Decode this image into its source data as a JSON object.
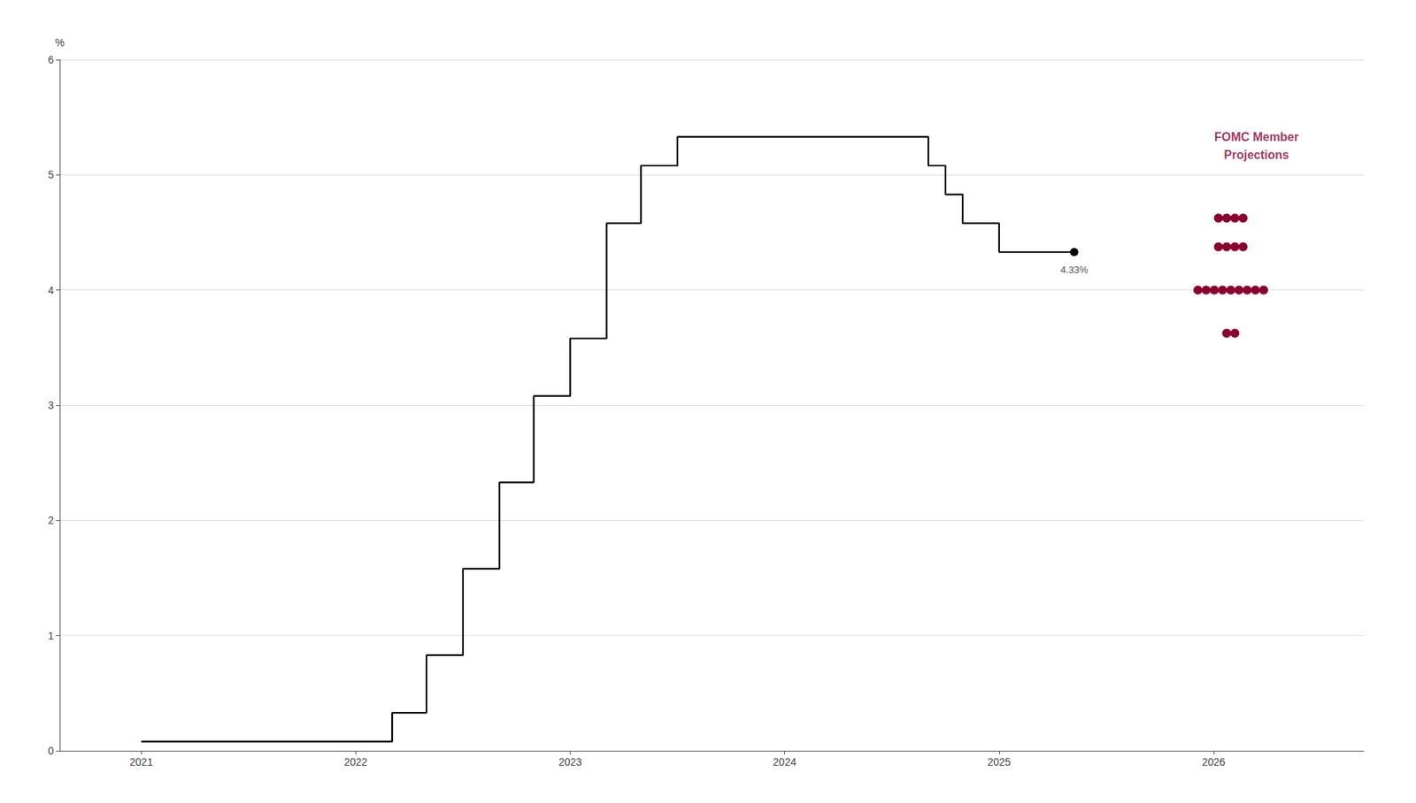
{
  "chart_data": {
    "type": "line",
    "ylabel": "%",
    "xlim": [
      2020.62,
      2026.7
    ],
    "xticks": [
      2021,
      2022,
      2023,
      2024,
      2025,
      2026
    ],
    "ylim": [
      0,
      6.0
    ],
    "yticks": [
      0,
      1,
      2,
      3,
      4,
      5,
      6
    ],
    "grid": true,
    "series": [
      {
        "type": "line",
        "color": "#000000",
        "x": [
          2021.0,
          2022.17,
          2022.17,
          2022.33,
          2022.33,
          2022.5,
          2022.5,
          2022.67,
          2022.67,
          2022.83,
          2022.83,
          2023.0,
          2023.0,
          2023.17,
          2023.17,
          2023.33,
          2023.33,
          2023.5,
          2023.5,
          2023.67,
          2024.67,
          2024.67,
          2024.75,
          2024.75,
          2024.83,
          2024.83,
          2025.0,
          2025.0,
          2025.35
        ],
        "values": [
          0.08,
          0.08,
          0.33,
          0.33,
          0.83,
          0.83,
          1.58,
          1.58,
          2.33,
          2.33,
          3.08,
          3.08,
          3.58,
          3.58,
          4.58,
          4.58,
          5.08,
          5.08,
          5.33,
          5.33,
          5.33,
          5.08,
          5.08,
          4.83,
          4.83,
          4.58,
          4.58,
          4.33,
          4.33
        ]
      },
      {
        "type": "scatter",
        "color": "#000000",
        "x": [
          2025.35
        ],
        "values": [
          4.33
        ],
        "value_labels": [
          "4.33%"
        ]
      },
      {
        "type": "scatter",
        "color": "#8b0030",
        "x": [
          2026.08,
          2026.08,
          2026.08,
          2026.08,
          2026.08,
          2026.08,
          2026.08,
          2026.08,
          2026.08,
          2026.08,
          2026.08,
          2026.08,
          2026.08,
          2026.08,
          2026.08,
          2026.08,
          2026.08,
          2026.08,
          2026.08
        ],
        "values": [
          4.625,
          4.625,
          4.625,
          4.625,
          4.375,
          4.375,
          4.375,
          4.375,
          4.0,
          4.0,
          4.0,
          4.0,
          4.0,
          4.0,
          4.0,
          4.0,
          4.0,
          3.625,
          3.625
        ]
      }
    ],
    "annotations": [
      {
        "text": "FOMC Member\nProjections",
        "x": 2026.2,
        "y": 5.25,
        "color": "#8b0030"
      }
    ]
  }
}
